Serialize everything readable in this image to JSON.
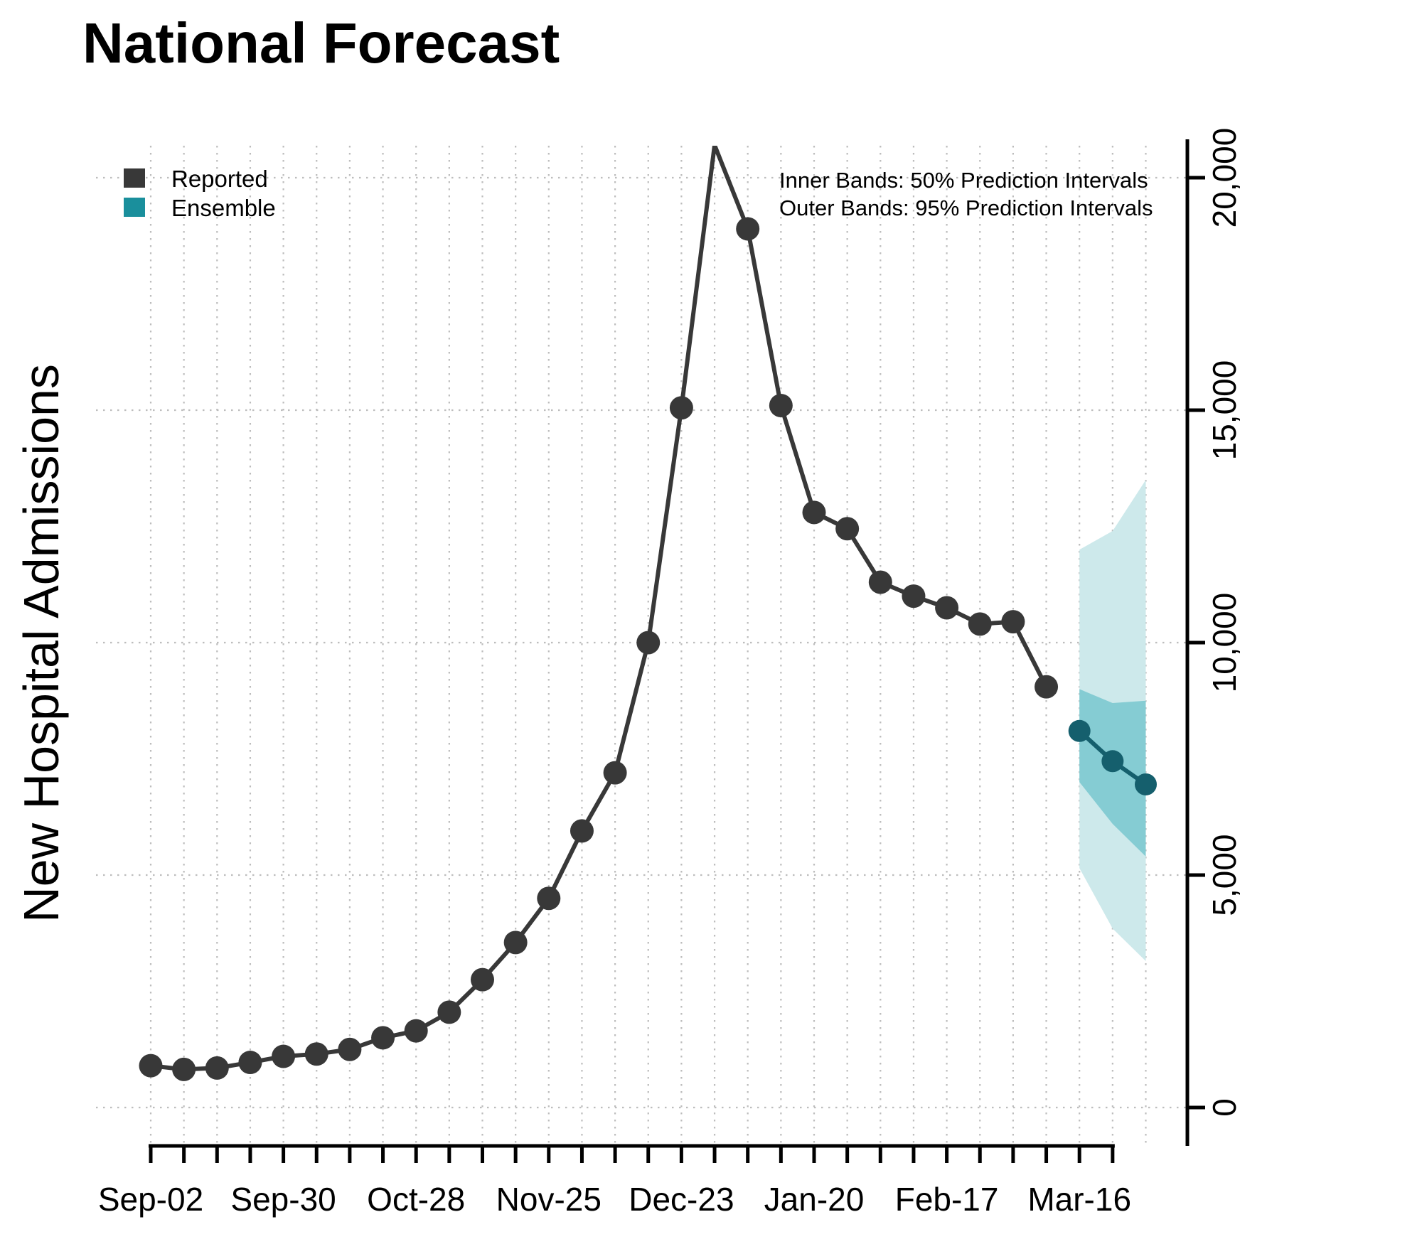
{
  "title": "National Forecast",
  "y_axis_title": "New Hospital Admissions",
  "legend": {
    "reported_label": "Reported",
    "ensemble_label": "Ensemble"
  },
  "annotation": {
    "line1": "Inner Bands: 50% Prediction Intervals",
    "line2": "Outer Bands: 95% Prediction Intervals"
  },
  "colors": {
    "reported": "#383838",
    "ensemble_line": "#155f6d",
    "ensemble_swatch": "#1a8f9c",
    "band_50": "#85ccd3",
    "band_95": "#cde9eb",
    "grid": "#bdbdbd",
    "axis": "#000000"
  },
  "chart_data": {
    "type": "line",
    "title": "National Forecast",
    "xlabel": "",
    "ylabel": "New Hospital Admissions",
    "ylim": [
      0,
      21000
    ],
    "y_ticks": [
      0,
      5000,
      10000,
      15000,
      20000
    ],
    "y_tick_labels": [
      "0",
      "5,000",
      "10,000",
      "15,000",
      "20,000"
    ],
    "grid": "dotted, vertical line every week and horizontal line every 5,000",
    "legend_position": "top-left",
    "weeks": [
      "Sep-02",
      "Sep-09",
      "Sep-16",
      "Sep-23",
      "Sep-30",
      "Oct-07",
      "Oct-14",
      "Oct-21",
      "Oct-28",
      "Nov-04",
      "Nov-11",
      "Nov-18",
      "Nov-25",
      "Dec-02",
      "Dec-09",
      "Dec-16",
      "Dec-23",
      "Dec-30",
      "Jan-06",
      "Jan-13",
      "Jan-20",
      "Jan-27",
      "Feb-03",
      "Feb-10",
      "Feb-17",
      "Feb-24",
      "Mar-02",
      "Mar-09",
      "Mar-16",
      "Mar-23",
      "Mar-30"
    ],
    "x_labeled_tick_indices": [
      0,
      4,
      8,
      12,
      16,
      20,
      24,
      28
    ],
    "x_tick_labels": [
      "Sep-02",
      "Sep-30",
      "Oct-28",
      "Nov-25",
      "Dec-23",
      "Jan-20",
      "Feb-17",
      "Mar-16"
    ],
    "series": [
      {
        "name": "Reported",
        "style": "line+markers",
        "start_index": 0,
        "values": [
          900,
          820,
          850,
          970,
          1100,
          1150,
          1250,
          1500,
          1650,
          2050,
          2750,
          3550,
          4500,
          5950,
          7200,
          10000,
          15050,
          20700,
          18900,
          15100,
          12800,
          12450,
          11300,
          11000,
          10750,
          10400,
          10450,
          9050
        ],
        "marker_hidden_dates": [
          "Dec-30"
        ],
        "note": "Dec-30 peak is clipped at the top of the plot region; its point marker is not visible"
      },
      {
        "name": "Ensemble",
        "style": "line+markers",
        "start_index": 28,
        "values": [
          8100,
          7450,
          6950
        ]
      }
    ],
    "prediction_bands": {
      "dates": [
        "Mar-16",
        "Mar-23",
        "Mar-30"
      ],
      "pi50_upper": [
        9000,
        8700,
        8750
      ],
      "pi50_lower": [
        7000,
        6100,
        5400
      ],
      "pi95_upper": [
        12000,
        12400,
        13500
      ],
      "pi95_lower": [
        5150,
        3850,
        3150
      ]
    }
  }
}
